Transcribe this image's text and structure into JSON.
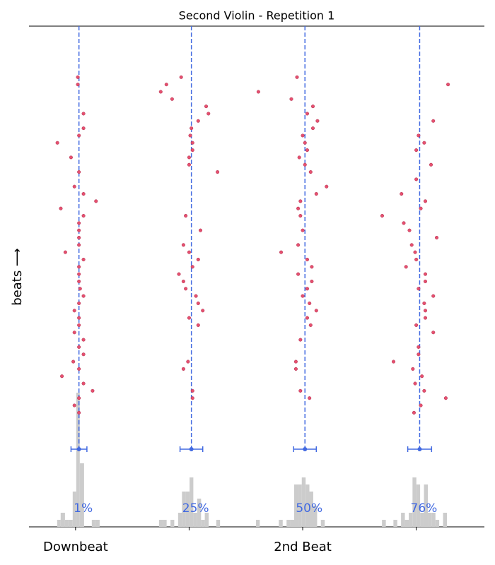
{
  "chart_data": {
    "type": "scatter",
    "title": "Second Violin - Repetition 1",
    "ylabel": "beats ⟶",
    "xlim": [
      -0.41,
      3.6
    ],
    "ylim": [
      -4,
      54
    ],
    "xticks": [
      {
        "value": 0,
        "label": "Downbeat"
      },
      {
        "value": 1,
        "label": null
      },
      {
        "value": 2,
        "label": "2nd Beat"
      },
      {
        "value": 3,
        "label": null
      }
    ],
    "color": "#e5506f",
    "series": [
      {
        "color": "#e5506f",
        "x": [
          0.02,
          0.02,
          0.07,
          0.07,
          0.03,
          -0.16,
          -0.04,
          0.03,
          -0.01,
          0.07,
          0.18,
          -0.13,
          0.07,
          0.03,
          0.03,
          0.03,
          0.03,
          -0.09,
          0.07,
          0.03,
          0.03,
          0.03,
          0.04,
          0.07,
          0.03,
          -0.01,
          0.03,
          0.03,
          -0.01,
          0.07,
          0.03,
          0.07,
          -0.02,
          0.03,
          -0.12,
          0.07,
          0.15,
          0.03,
          -0.01,
          0.03
        ],
        "values": [
          47,
          46,
          42,
          40,
          39,
          38,
          36,
          34,
          32,
          31,
          30,
          29,
          28,
          27,
          26,
          25,
          24,
          23,
          22,
          21,
          20,
          19,
          18,
          17,
          16,
          15,
          14,
          13,
          12,
          11,
          10,
          9,
          8,
          7,
          6,
          5,
          4,
          3,
          2,
          1
        ]
      },
      {
        "color": "#e5506f",
        "x": [
          0.93,
          0.8,
          0.75,
          0.85,
          1.15,
          1.17,
          1.08,
          1.02,
          1.01,
          1.03,
          1.03,
          1.0,
          1.0,
          1.25,
          0.97,
          1.1,
          0.95,
          1.0,
          1.08,
          1.03,
          0.91,
          0.95,
          0.97,
          1.06,
          1.08,
          1.12,
          1.0,
          1.08,
          0.99,
          0.95,
          1.03,
          1.03
        ],
        "values": [
          47,
          46,
          45,
          44,
          43,
          42,
          41,
          40,
          39,
          38,
          37,
          36,
          35,
          34,
          28,
          26,
          24,
          23,
          22,
          21,
          20,
          19,
          18,
          17,
          16,
          15,
          14,
          13,
          8,
          7,
          4,
          3
        ]
      },
      {
        "color": "#e5506f",
        "x": [
          1.95,
          1.61,
          1.9,
          2.09,
          2.04,
          2.13,
          2.09,
          2.0,
          2.02,
          2.04,
          1.97,
          2.02,
          2.07,
          2.21,
          2.12,
          1.98,
          1.96,
          1.98,
          2.0,
          1.96,
          1.81,
          2.04,
          2.08,
          1.96,
          2.08,
          2.04,
          2.0,
          2.06,
          2.12,
          2.04,
          2.07,
          1.98,
          1.94,
          1.94,
          1.98,
          2.06
        ],
        "values": [
          47,
          45,
          44,
          43,
          42,
          41,
          40,
          39,
          38,
          37,
          36,
          35,
          34,
          32,
          31,
          30,
          29,
          28,
          26,
          24,
          23,
          22,
          21,
          20,
          19,
          18,
          17,
          16,
          15,
          14,
          13,
          11,
          8,
          7,
          4,
          3
        ]
      },
      {
        "color": "#e5506f",
        "x": [
          3.28,
          3.15,
          3.02,
          3.07,
          3.0,
          3.13,
          3.0,
          2.87,
          3.08,
          3.04,
          2.7,
          2.89,
          2.94,
          3.18,
          2.96,
          2.99,
          3.0,
          2.91,
          3.08,
          3.08,
          3.02,
          3.15,
          3.07,
          3.08,
          3.08,
          3.0,
          3.15,
          3.02,
          3.02,
          2.8,
          2.97,
          3.05,
          2.99,
          3.07,
          3.26,
          3.04,
          2.98
        ],
        "values": [
          46,
          41,
          39,
          38,
          37,
          35,
          33,
          31,
          30,
          29,
          28,
          27,
          26,
          25,
          24,
          23,
          22,
          21,
          20,
          19,
          18,
          17,
          16,
          15,
          14,
          13,
          12,
          10,
          9,
          8,
          7,
          6,
          5,
          4,
          3,
          2,
          1
        ]
      }
    ],
    "means": [
      0.03,
      1.02,
      2.02,
      3.03
    ],
    "errors": [
      0.07,
      0.1,
      0.1,
      0.105
    ],
    "mean_color": "#4169e1",
    "phase": {
      "values": [
        1,
        25,
        50,
        76
      ],
      "value_labels": [
        "1%",
        "25%",
        "50%",
        "76%"
      ]
    },
    "hist_ylim": [
      0,
      11
    ],
    "hist_color": "#cccccc",
    "histograms": [
      {
        "bins": [
          -0.162,
          -0.131,
          -0.093,
          -0.062,
          -0.025,
          0.006,
          0.037,
          0.075,
          0.106,
          0.143,
          0.174,
          0.212
        ],
        "counts": [
          1,
          2,
          1,
          1,
          5,
          19,
          9,
          0,
          0,
          1,
          1
        ]
      },
      {
        "bins": [
          0.735,
          0.769,
          0.802,
          0.836,
          0.869,
          0.903,
          0.937,
          0.97,
          1.004,
          1.037,
          1.071,
          1.105,
          1.138,
          1.172,
          1.205,
          1.239,
          1.272
        ],
        "counts": [
          1,
          1,
          0,
          1,
          0,
          2,
          5,
          5,
          7,
          2,
          4,
          1,
          2,
          0,
          0,
          1
        ]
      },
      {
        "bins": [
          1.589,
          1.622,
          1.656,
          1.69,
          1.723,
          1.757,
          1.79,
          1.824,
          1.858,
          1.891,
          1.925,
          1.959,
          1.992,
          2.026,
          2.059,
          2.093,
          2.127,
          2.16,
          2.194
        ],
        "counts": [
          1,
          0,
          0,
          0,
          0,
          0,
          1,
          0,
          1,
          1,
          6,
          6,
          7,
          6,
          5,
          3,
          0,
          1
        ]
      },
      {
        "bins": [
          2.698,
          2.732,
          2.765,
          2.799,
          2.833,
          2.866,
          2.9,
          2.934,
          2.967,
          3.001,
          3.034,
          3.068,
          3.102,
          3.135,
          3.169,
          3.202,
          3.236,
          3.27
        ],
        "counts": [
          1,
          0,
          0,
          1,
          0,
          2,
          1,
          2,
          7,
          6,
          2,
          6,
          2,
          2,
          1,
          0,
          2
        ]
      }
    ]
  }
}
